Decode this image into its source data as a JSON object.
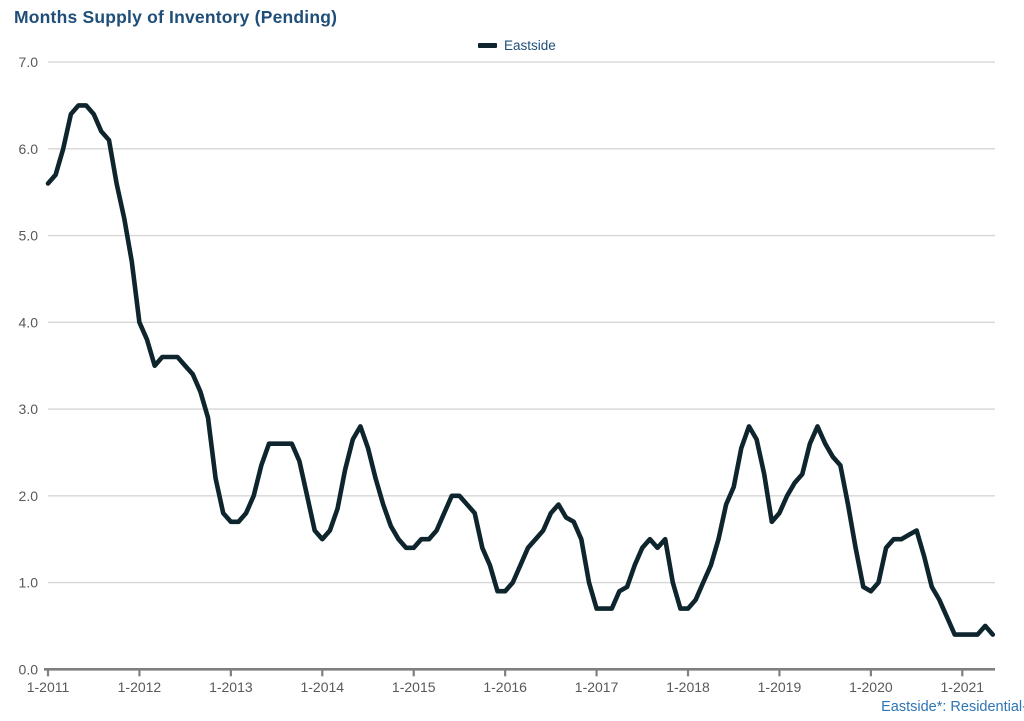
{
  "header": {
    "title": "Months Supply of Inventory (Pending)"
  },
  "legend": {
    "label": "Eastside"
  },
  "footer": {
    "note": "Eastside*: Residential-"
  },
  "colors": {
    "title": "#1F4E79",
    "legend_text": "#1F4E79",
    "line": "#0F252D",
    "gridline": "#D6D6D6",
    "axis": "#7F7F7F",
    "tick_label": "#595959",
    "footer_text": "#2E75B6"
  },
  "chart_data": {
    "type": "line",
    "title": "Months Supply of Inventory (Pending)",
    "xlabel": "",
    "ylabel": "",
    "ylim": [
      0,
      7
    ],
    "grid": "horizontal",
    "legend_position": "top-center",
    "y_tick_labels": [
      "7.0",
      "6.0",
      "5.0",
      "4.0",
      "3.0",
      "2.0",
      "1.0",
      "0.0"
    ],
    "x_tick_labels": [
      "1-2011",
      "1-2012",
      "1-2013",
      "1-2014",
      "1-2015",
      "1-2016",
      "1-2017",
      "1-2018",
      "1-2019",
      "1-2020",
      "1-2021"
    ],
    "x_frequency": "monthly",
    "x_start": "1-2011",
    "x_end": "5-2021",
    "series": [
      {
        "name": "Eastside",
        "values": [
          5.6,
          5.7,
          6.0,
          6.4,
          6.5,
          6.5,
          6.4,
          6.2,
          6.1,
          5.6,
          5.2,
          4.7,
          4.0,
          3.8,
          3.5,
          3.6,
          3.6,
          3.6,
          3.5,
          3.4,
          3.2,
          2.9,
          2.2,
          1.8,
          1.7,
          1.7,
          1.8,
          2.0,
          2.35,
          2.6,
          2.6,
          2.6,
          2.6,
          2.4,
          2.0,
          1.6,
          1.5,
          1.6,
          1.85,
          2.3,
          2.65,
          2.8,
          2.55,
          2.2,
          1.9,
          1.65,
          1.5,
          1.4,
          1.4,
          1.5,
          1.5,
          1.6,
          1.8,
          2.0,
          2.0,
          1.9,
          1.8,
          1.4,
          1.2,
          0.9,
          0.9,
          1.0,
          1.2,
          1.4,
          1.5,
          1.6,
          1.8,
          1.9,
          1.75,
          1.7,
          1.5,
          1.0,
          0.7,
          0.7,
          0.7,
          0.9,
          0.95,
          1.2,
          1.4,
          1.5,
          1.4,
          1.5,
          1.0,
          0.7,
          0.7,
          0.8,
          1.0,
          1.2,
          1.5,
          1.9,
          2.1,
          2.55,
          2.8,
          2.65,
          2.25,
          1.7,
          1.8,
          2.0,
          2.15,
          2.25,
          2.6,
          2.8,
          2.6,
          2.45,
          2.35,
          1.9,
          1.4,
          0.95,
          0.9,
          1.0,
          1.4,
          1.5,
          1.5,
          1.55,
          1.6,
          1.3,
          0.95,
          0.8,
          0.6,
          0.4,
          0.4,
          0.4,
          0.4,
          0.5,
          0.4
        ]
      }
    ]
  }
}
